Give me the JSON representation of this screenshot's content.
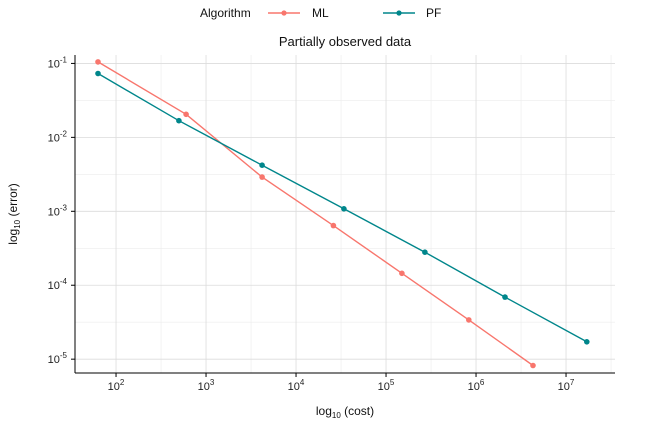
{
  "chart_data": {
    "type": "line",
    "title": "Partially observed data",
    "xlabel": {
      "prefix": "log",
      "sub": "10",
      "suffix": " (cost)"
    },
    "ylabel": {
      "prefix": "log",
      "sub": "10",
      "suffix": " (error)"
    },
    "x_scale": "log",
    "y_scale": "log",
    "xlim": [
      35,
      35000000
    ],
    "ylim": [
      6.5e-06,
      0.13
    ],
    "x_ticks": [
      {
        "value": 100,
        "base": "10",
        "exp": "2"
      },
      {
        "value": 1000,
        "base": "10",
        "exp": "3"
      },
      {
        "value": 10000,
        "base": "10",
        "exp": "4"
      },
      {
        "value": 100000,
        "base": "10",
        "exp": "5"
      },
      {
        "value": 1000000,
        "base": "10",
        "exp": "6"
      },
      {
        "value": 10000000,
        "base": "10",
        "exp": "7"
      }
    ],
    "y_ticks": [
      {
        "value": 0.1,
        "base": "10",
        "exp": "-1"
      },
      {
        "value": 0.01,
        "base": "10",
        "exp": "-2"
      },
      {
        "value": 0.001,
        "base": "10",
        "exp": "-3"
      },
      {
        "value": 0.0001,
        "base": "10",
        "exp": "-4"
      },
      {
        "value": 1e-05,
        "base": "10",
        "exp": "-5"
      }
    ],
    "grid": true,
    "legend": {
      "title": "Algorithm",
      "position": "top"
    },
    "series": [
      {
        "name": "ML",
        "color": "#f8766d",
        "x": [
          63,
          600,
          4200,
          26000,
          150000,
          830000,
          4300000
        ],
        "y": [
          0.105,
          0.0205,
          0.0029,
          0.00064,
          0.000145,
          3.4e-05,
          8.2e-06
        ]
      },
      {
        "name": "PF",
        "color": "#00868b",
        "x": [
          63,
          500,
          4200,
          34000,
          270000,
          2100000,
          17000000
        ],
        "y": [
          0.073,
          0.0168,
          0.0042,
          0.00108,
          0.00028,
          6.9e-05,
          1.72e-05
        ]
      }
    ]
  }
}
